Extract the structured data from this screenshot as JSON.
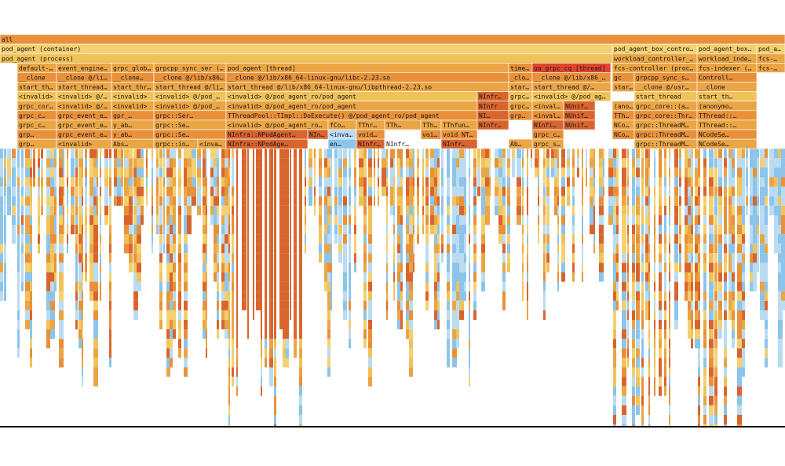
{
  "chart_data": {
    "type": "flamegraph",
    "colors": {
      "orange": "#e8913a",
      "dark_orange": "#d9652e",
      "amber": "#eaa545",
      "yellow": "#f0c25a",
      "light_yellow": "#f3d071",
      "blue": "#8cc4ea",
      "light_blue": "#b9dcf2",
      "red": "#e0442d",
      "white_bg": "#ffffff"
    },
    "frames": [
      {
        "label": "all",
        "depth": 0,
        "start": 0,
        "width": 1000,
        "color": "orange"
      },
      {
        "label": "pod_agent (container)",
        "depth": 1,
        "start": 0,
        "width": 780,
        "color": "light_yellow"
      },
      {
        "label": "pod_agent_box_contro…",
        "depth": 1,
        "start": 780,
        "width": 108,
        "color": "light_yellow"
      },
      {
        "label": "pod_agent_box_…",
        "depth": 1,
        "start": 888,
        "width": 76,
        "color": "light_yellow"
      },
      {
        "label": "pod_a…",
        "depth": 1,
        "start": 964,
        "width": 36,
        "color": "light_yellow"
      },
      {
        "label": "pod_agent (process)",
        "depth": 2,
        "start": 0,
        "width": 780,
        "color": "yellow"
      },
      {
        "label": "workload_controller_…",
        "depth": 2,
        "start": 780,
        "width": 108,
        "color": "amber"
      },
      {
        "label": "workload_inde…",
        "depth": 2,
        "start": 888,
        "width": 76,
        "color": "amber"
      },
      {
        "label": "fcs-…",
        "depth": 2,
        "start": 964,
        "width": 36,
        "color": "amber"
      },
      {
        "label": "default-…",
        "depth": 3,
        "start": 22,
        "width": 50,
        "color": "amber"
      },
      {
        "label": "event_engine…",
        "depth": 3,
        "start": 72,
        "width": 70,
        "color": "amber"
      },
      {
        "label": "grpc_glob…",
        "depth": 3,
        "start": 142,
        "width": 54,
        "color": "amber"
      },
      {
        "label": "grpcpp_sync_ser (…",
        "depth": 3,
        "start": 196,
        "width": 92,
        "color": "amber"
      },
      {
        "label": "pod_agent [thread]",
        "depth": 3,
        "start": 288,
        "width": 360,
        "color": "amber"
      },
      {
        "label": "time…",
        "depth": 3,
        "start": 648,
        "width": 30,
        "color": "orange"
      },
      {
        "label": "ua_grpc_cq [thread]",
        "depth": 3,
        "start": 678,
        "width": 100,
        "color": "red"
      },
      {
        "label": "fcs-controller (proc…",
        "depth": 3,
        "start": 780,
        "width": 108,
        "color": "amber"
      },
      {
        "label": "fcs-indexer (proc…",
        "depth": 3,
        "start": 888,
        "width": 76,
        "color": "amber"
      },
      {
        "label": "fcs-…",
        "depth": 3,
        "start": 964,
        "width": 36,
        "color": "amber"
      },
      {
        "label": "__clone",
        "depth": 4,
        "start": 22,
        "width": 50,
        "color": "orange"
      },
      {
        "label": "__clone @/li…",
        "depth": 4,
        "start": 72,
        "width": 70,
        "color": "orange"
      },
      {
        "label": "__clone…",
        "depth": 4,
        "start": 142,
        "width": 54,
        "color": "orange"
      },
      {
        "label": "__clone @/lib/x86_64…",
        "depth": 4,
        "start": 196,
        "width": 92,
        "color": "orange"
      },
      {
        "label": "__clone @/lib/x86_64-linux-gnu/libc-2.23.so",
        "depth": 4,
        "start": 288,
        "width": 360,
        "color": "orange"
      },
      {
        "label": "_clo…",
        "depth": 4,
        "start": 648,
        "width": 30,
        "color": "orange"
      },
      {
        "label": "__clone @/lib/x86_6…",
        "depth": 4,
        "start": 678,
        "width": 100,
        "color": "orange"
      },
      {
        "label": "gc",
        "depth": 4,
        "start": 780,
        "width": 28,
        "color": "orange"
      },
      {
        "label": "grpcpp_sync_s…",
        "depth": 4,
        "start": 808,
        "width": 80,
        "color": "orange"
      },
      {
        "label": "Controll…",
        "depth": 4,
        "start": 888,
        "width": 76,
        "color": "orange"
      },
      {
        "label": "start_th…",
        "depth": 5,
        "start": 22,
        "width": 50,
        "color": "amber"
      },
      {
        "label": "start_thread…",
        "depth": 5,
        "start": 72,
        "width": 70,
        "color": "amber"
      },
      {
        "label": "start_thr…",
        "depth": 5,
        "start": 142,
        "width": 54,
        "color": "amber"
      },
      {
        "label": "start_thread @/li…",
        "depth": 5,
        "start": 196,
        "width": 92,
        "color": "amber"
      },
      {
        "label": "start_thread @/lib/x86_64-linux-gnu/libpthread-2.23.so",
        "depth": 5,
        "start": 288,
        "width": 360,
        "color": "amber"
      },
      {
        "label": "star…",
        "depth": 5,
        "start": 648,
        "width": 30,
        "color": "amber"
      },
      {
        "label": "start_thread @/…",
        "depth": 5,
        "start": 678,
        "width": 100,
        "color": "amber"
      },
      {
        "label": "start…",
        "depth": 5,
        "start": 780,
        "width": 28,
        "color": "amber"
      },
      {
        "label": "__clone @/usr…",
        "depth": 5,
        "start": 808,
        "width": 80,
        "color": "amber"
      },
      {
        "label": "__clone",
        "depth": 5,
        "start": 888,
        "width": 76,
        "color": "amber"
      },
      {
        "label": "<invalid>",
        "depth": 6,
        "start": 22,
        "width": 50,
        "color": "yellow"
      },
      {
        "label": "<invalid> @/…",
        "depth": 6,
        "start": 72,
        "width": 70,
        "color": "yellow"
      },
      {
        "label": "<invalid>",
        "depth": 6,
        "start": 142,
        "width": 54,
        "color": "yellow"
      },
      {
        "label": "<invalid> @/pod_…",
        "depth": 6,
        "start": 196,
        "width": 92,
        "color": "yellow"
      },
      {
        "label": "<invalid> @/pod_agent_ro/pod_agent",
        "depth": 6,
        "start": 288,
        "width": 320,
        "color": "yellow"
      },
      {
        "label": "NInfr…",
        "depth": 6,
        "start": 608,
        "width": 40,
        "color": "dark_orange"
      },
      {
        "label": "grpc…",
        "depth": 6,
        "start": 648,
        "width": 30,
        "color": "yellow"
      },
      {
        "label": "<invalid> @/pod_ag…",
        "depth": 6,
        "start": 678,
        "width": 100,
        "color": "yellow"
      },
      {
        "label": "start_thread",
        "depth": 6,
        "start": 808,
        "width": 80,
        "color": "yellow"
      },
      {
        "label": "start_th…",
        "depth": 6,
        "start": 888,
        "width": 76,
        "color": "yellow"
      },
      {
        "label": "grpc_cor…",
        "depth": 7,
        "start": 22,
        "width": 50,
        "color": "amber"
      },
      {
        "label": "<invalid> @/…",
        "depth": 7,
        "start": 72,
        "width": 70,
        "color": "amber"
      },
      {
        "label": "<invalid>",
        "depth": 7,
        "start": 142,
        "width": 54,
        "color": "amber"
      },
      {
        "label": "<invalid> @/pod_…",
        "depth": 7,
        "start": 196,
        "width": 92,
        "color": "amber"
      },
      {
        "label": "<invalid> @/pod_agent_ro/pod_agent",
        "depth": 7,
        "start": 288,
        "width": 320,
        "color": "amber"
      },
      {
        "label": "NInfr",
        "depth": 7,
        "start": 608,
        "width": 40,
        "color": "dark_orange"
      },
      {
        "label": "grpc…",
        "depth": 7,
        "start": 648,
        "width": 30,
        "color": "amber"
      },
      {
        "label": "<inval…",
        "depth": 7,
        "start": 678,
        "width": 40,
        "color": "amber"
      },
      {
        "label": "NUnif…",
        "depth": 7,
        "start": 718,
        "width": 40,
        "color": "dark_orange"
      },
      {
        "label": "(anony…",
        "depth": 7,
        "start": 780,
        "width": 28,
        "color": "amber"
      },
      {
        "label": "grpc_core::(a…",
        "depth": 7,
        "start": 808,
        "width": 80,
        "color": "amber"
      },
      {
        "label": "(anonymo…",
        "depth": 7,
        "start": 888,
        "width": 76,
        "color": "amber"
      },
      {
        "label": "grpc_c…",
        "depth": 8,
        "start": 22,
        "width": 50,
        "color": "orange"
      },
      {
        "label": "grpc_event_e…",
        "depth": 8,
        "start": 72,
        "width": 70,
        "color": "orange"
      },
      {
        "label": "gpr_…",
        "depth": 8,
        "start": 142,
        "width": 54,
        "color": "orange"
      },
      {
        "label": "grpc::Ser…",
        "depth": 8,
        "start": 196,
        "width": 92,
        "color": "orange"
      },
      {
        "label": "TThreadPool::TImpl::DoExecute() @/pod_agent_ro/pod_agent",
        "depth": 8,
        "start": 288,
        "width": 320,
        "color": "orange"
      },
      {
        "label": "NI…",
        "depth": 8,
        "start": 608,
        "width": 40,
        "color": "dark_orange"
      },
      {
        "label": "grp…",
        "depth": 8,
        "start": 648,
        "width": 30,
        "color": "orange"
      },
      {
        "label": "<inval…",
        "depth": 8,
        "start": 678,
        "width": 40,
        "color": "orange"
      },
      {
        "label": "NUnif…",
        "depth": 8,
        "start": 718,
        "width": 40,
        "color": "dark_orange"
      },
      {
        "label": "TTh…",
        "depth": 8,
        "start": 780,
        "width": 28,
        "color": "orange"
      },
      {
        "label": "grpc_core::ThreadM…",
        "depth": 8,
        "start": 808,
        "width": 80,
        "color": "orange"
      },
      {
        "label": "TThread::…",
        "depth": 8,
        "start": 888,
        "width": 76,
        "color": "orange"
      },
      {
        "label": "grpc_c…",
        "depth": 9,
        "start": 22,
        "width": 50,
        "color": "amber"
      },
      {
        "label": "grpc_event_e…",
        "depth": 9,
        "start": 72,
        "width": 70,
        "color": "amber"
      },
      {
        "label": "y_ab…",
        "depth": 9,
        "start": 142,
        "width": 54,
        "color": "amber"
      },
      {
        "label": "grpc::Se…",
        "depth": 9,
        "start": 196,
        "width": 92,
        "color": "amber"
      },
      {
        "label": "<invalid> @/pod_agent_ro/p…",
        "depth": 9,
        "start": 288,
        "width": 130,
        "color": "amber"
      },
      {
        "label": "fCo…",
        "depth": 9,
        "start": 418,
        "width": 36,
        "color": "amber"
      },
      {
        "label": "TThr…",
        "depth": 9,
        "start": 454,
        "width": 36,
        "color": "amber"
      },
      {
        "label": "TTh…",
        "depth": 9,
        "start": 490,
        "width": 46,
        "color": "amber"
      },
      {
        "label": "TTh…",
        "depth": 9,
        "start": 536,
        "width": 26,
        "color": "amber"
      },
      {
        "label": "TThfun…",
        "depth": 9,
        "start": 562,
        "width": 46,
        "color": "amber"
      },
      {
        "label": "NInfr…",
        "depth": 9,
        "start": 608,
        "width": 40,
        "color": "dark_orange"
      },
      {
        "label": "NInfi…",
        "depth": 9,
        "start": 678,
        "width": 40,
        "color": "dark_orange"
      },
      {
        "label": "NUnif…",
        "depth": 9,
        "start": 718,
        "width": 40,
        "color": "dark_orange"
      },
      {
        "label": "NCo…",
        "depth": 9,
        "start": 780,
        "width": 28,
        "color": "amber"
      },
      {
        "label": "grpc::ThreadM…",
        "depth": 9,
        "start": 808,
        "width": 80,
        "color": "amber"
      },
      {
        "label": "TThread::…",
        "depth": 9,
        "start": 888,
        "width": 76,
        "color": "amber"
      },
      {
        "label": "grp…",
        "depth": 10,
        "start": 22,
        "width": 50,
        "color": "orange"
      },
      {
        "label": "grpc_event_e…",
        "depth": 10,
        "start": 72,
        "width": 70,
        "color": "orange"
      },
      {
        "label": "y_ab…",
        "depth": 10,
        "start": 142,
        "width": 54,
        "color": "orange"
      },
      {
        "label": "grpc::Se…",
        "depth": 10,
        "start": 196,
        "width": 92,
        "color": "orange"
      },
      {
        "label": "NInfra::NPodAgent…",
        "depth": 10,
        "start": 288,
        "width": 104,
        "color": "dark_orange"
      },
      {
        "label": "NIn…",
        "depth": 10,
        "start": 392,
        "width": 26,
        "color": "dark_orange"
      },
      {
        "label": "<invalid>",
        "depth": 10,
        "start": 418,
        "width": 36,
        "color": "light_blue"
      },
      {
        "label": "void…",
        "depth": 10,
        "start": 454,
        "width": 36,
        "color": "orange"
      },
      {
        "label": "void…",
        "depth": 10,
        "start": 536,
        "width": 26,
        "color": "orange"
      },
      {
        "label": "void NT…",
        "depth": 10,
        "start": 562,
        "width": 46,
        "color": "orange"
      },
      {
        "label": "grpc_c…",
        "depth": 10,
        "start": 678,
        "width": 40,
        "color": "orange"
      },
      {
        "label": "NCo…",
        "depth": 10,
        "start": 780,
        "width": 28,
        "color": "orange"
      },
      {
        "label": "grpc::ThreadM…",
        "depth": 10,
        "start": 808,
        "width": 80,
        "color": "orange"
      },
      {
        "label": "NCodeSe…",
        "depth": 10,
        "start": 888,
        "width": 76,
        "color": "orange"
      },
      {
        "label": "grp…",
        "depth": 11,
        "start": 22,
        "width": 50,
        "color": "amber"
      },
      {
        "label": "<invalid>",
        "depth": 11,
        "start": 72,
        "width": 70,
        "color": "amber"
      },
      {
        "label": "Abs…",
        "depth": 11,
        "start": 142,
        "width": 54,
        "color": "amber"
      },
      {
        "label": "grpc::in…",
        "depth": 11,
        "start": 196,
        "width": 56,
        "color": "amber"
      },
      {
        "label": "<invali…",
        "depth": 11,
        "start": 252,
        "width": 36,
        "color": "amber"
      },
      {
        "label": "NInfra::NPodAge…",
        "depth": 11,
        "start": 288,
        "width": 104,
        "color": "dark_orange"
      },
      {
        "label": "en…",
        "depth": 11,
        "start": 418,
        "width": 36,
        "color": "blue"
      },
      {
        "label": "NInfr…",
        "depth": 11,
        "start": 454,
        "width": 36,
        "color": "dark_orange"
      },
      {
        "label": "NInfr…",
        "depth": 11,
        "start": 490,
        "width": 46,
        "color": "white_bg"
      },
      {
        "label": "NInfr…",
        "depth": 11,
        "start": 562,
        "width": 46,
        "color": "dark_orange"
      },
      {
        "label": "Ab…",
        "depth": 11,
        "start": 648,
        "width": 30,
        "color": "amber"
      },
      {
        "label": "grpc_se…",
        "depth": 11,
        "start": 678,
        "width": 40,
        "color": "amber"
      },
      {
        "label": "grpc::ThreadM…",
        "depth": 11,
        "start": 808,
        "width": 80,
        "color": "amber"
      },
      {
        "label": "NCodeSe…",
        "depth": 11,
        "start": 888,
        "width": 76,
        "color": "amber"
      }
    ]
  }
}
